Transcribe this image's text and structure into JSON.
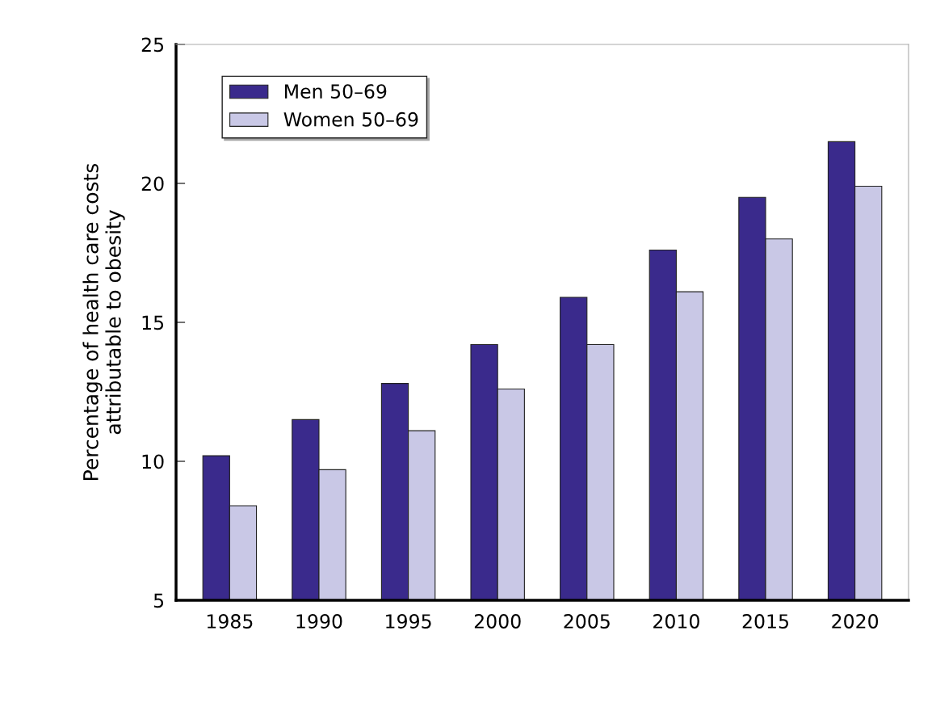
{
  "chart_data": {
    "type": "bar",
    "ylabel": "Percentage of health care costs\nattributable to obesity",
    "categories": [
      "1985",
      "1990",
      "1995",
      "2000",
      "2005",
      "2010",
      "2015",
      "2020"
    ],
    "series": [
      {
        "name": "Men 50–69",
        "color": "#3a2a8c",
        "values": [
          10.2,
          11.5,
          12.8,
          14.2,
          15.9,
          17.6,
          19.5,
          21.5
        ]
      },
      {
        "name": "Women 50–69",
        "color": "#c9c8e6",
        "values": [
          8.4,
          9.7,
          11.1,
          12.6,
          14.2,
          16.1,
          18.0,
          19.9
        ]
      }
    ],
    "ylim": [
      5,
      25
    ],
    "yticks": [
      5,
      10,
      15,
      20,
      25
    ],
    "grid": false,
    "legend": "top left"
  }
}
